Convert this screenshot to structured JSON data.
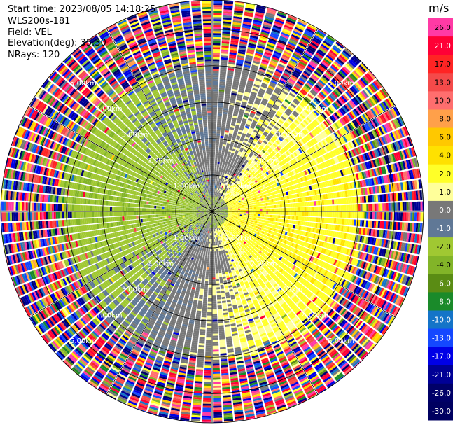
{
  "header": {
    "start_time": "Start time: 2023/08/05 14:18:25",
    "instrument": "WLS200s-181",
    "field": "Field: VEL",
    "elevation": "Elevation(deg): 35.30",
    "nrays": "NRays: 120"
  },
  "chart_data": {
    "type": "ppi",
    "field": "VEL",
    "units": "m/s",
    "n_rays": 120,
    "elevation_deg": 35.3,
    "range_rings_km": [
      1.0,
      2.0,
      3.0,
      4.0,
      5.0
    ],
    "range_ring_labels": [
      "1.00km",
      "2.00km",
      "3.00km",
      "4.00km",
      "5.00km"
    ],
    "max_range_km": 5.8,
    "spoke_angles_deg": [
      0,
      30,
      60,
      90,
      120,
      150,
      180,
      210,
      240,
      270,
      300,
      330
    ],
    "colorbar": {
      "unit_label": "m/s",
      "ticks": [
        "26.0",
        "21.0",
        "17.0",
        "13.0",
        "10.0",
        "8.0",
        "6.0",
        "4.0",
        "2.0",
        "1.0",
        "0.0",
        "-1.0",
        "-2.0",
        "-4.0",
        "-6.0",
        "-8.0",
        "-10.0",
        "-13.0",
        "-17.0",
        "-21.0",
        "-26.0",
        "-30.0"
      ],
      "colors": [
        "#ff3aa5",
        "#ff0036",
        "#ff2424",
        "#f44a4a",
        "#ff6e6e",
        "#ffa04a",
        "#ffc800",
        "#ffe100",
        "#ffff28",
        "#ffff9a",
        "#787878",
        "#607896",
        "#a0c832",
        "#82b428",
        "#5a8c14",
        "#1a8a2a",
        "#1474c8",
        "#1448ff",
        "#0000e6",
        "#000096",
        "#000068",
        "#000060"
      ]
    },
    "regions": [
      {
        "range_km": [
          0.0,
          0.45
        ],
        "pattern": "center",
        "note": "mixed green/gray"
      },
      {
        "range_km": [
          0.45,
          4.1
        ],
        "pattern": "dipole",
        "positive_dir_deg": 100,
        "max_speed_ms": 3.5
      },
      {
        "range_km": [
          4.1,
          5.8
        ],
        "pattern": "noise"
      }
    ]
  }
}
